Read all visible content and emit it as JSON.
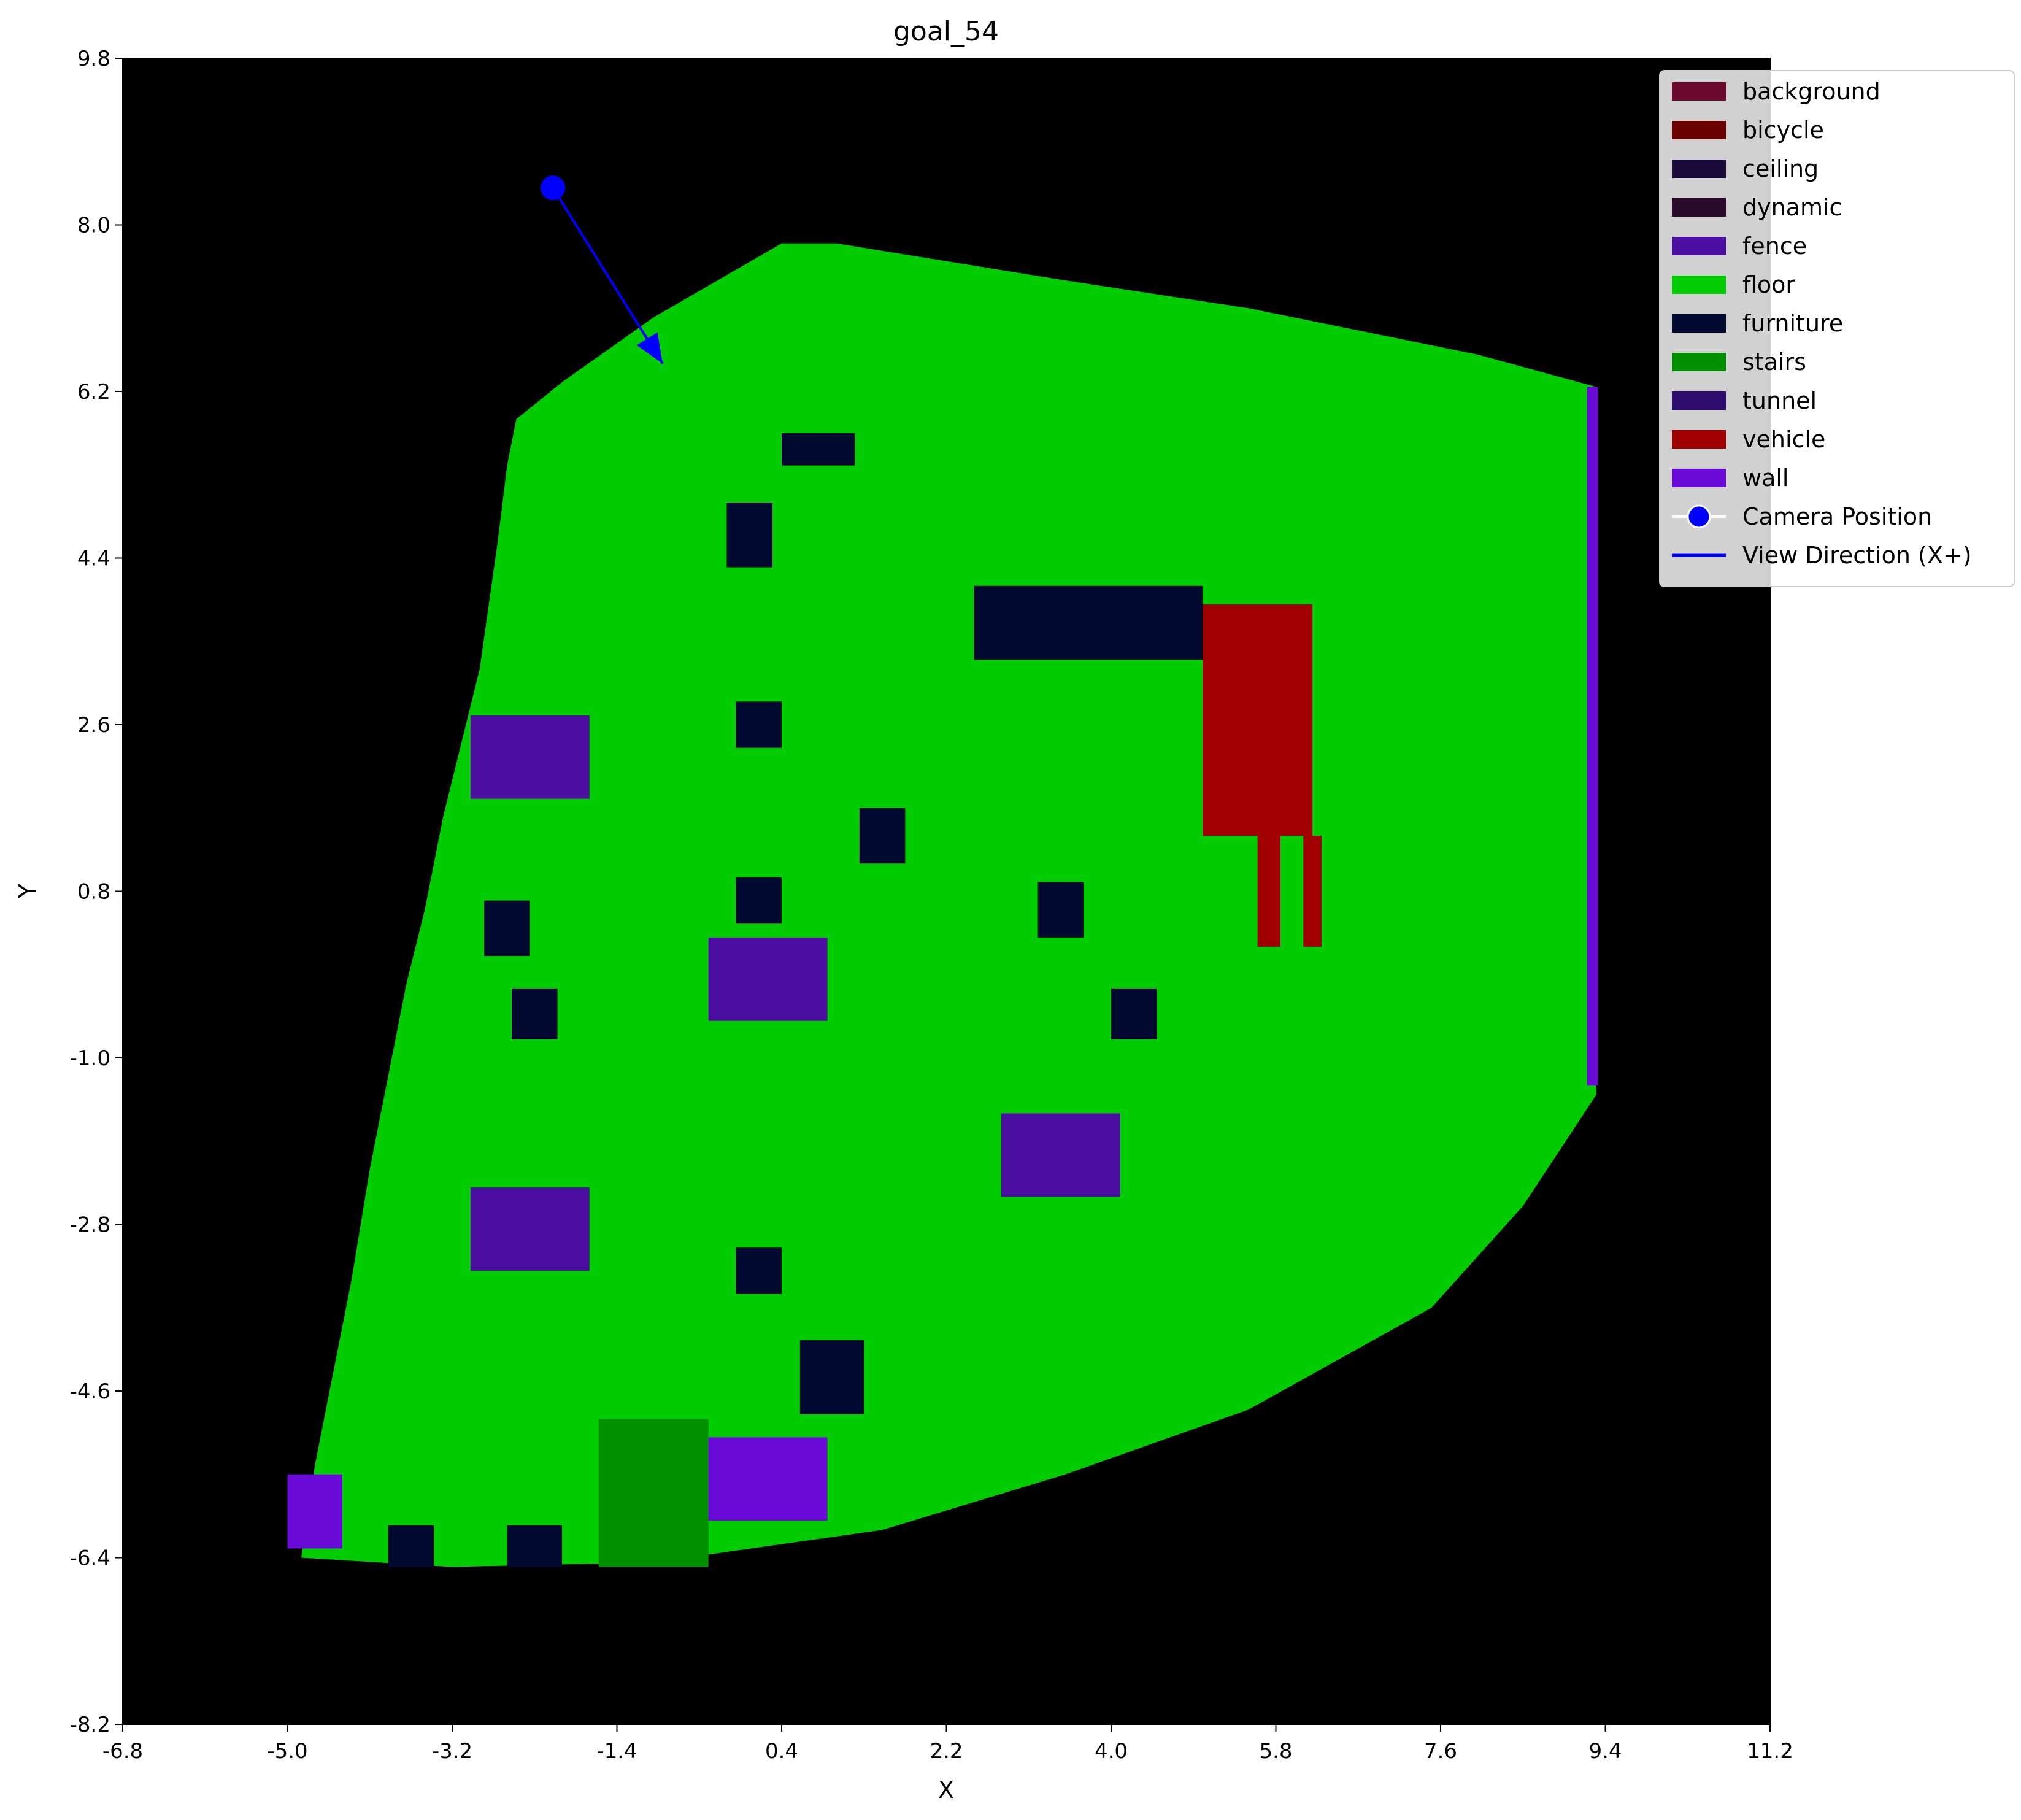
{
  "chart_data": {
    "type": "heatmap",
    "title": "goal_54",
    "xlabel": "X",
    "ylabel": "Y",
    "xlim": [
      -6.8,
      11.2
    ],
    "ylim": [
      -8.2,
      9.8
    ],
    "xticks": [
      "-6.8",
      "-5.0",
      "-3.2",
      "-1.4",
      "0.4",
      "2.2",
      "4.0",
      "5.8",
      "7.6",
      "9.4",
      "11.2"
    ],
    "yticks": [
      "9.8",
      "8.0",
      "6.2",
      "4.4",
      "2.6",
      "0.8",
      "-1.0",
      "-2.8",
      "-4.6",
      "-6.4",
      "-8.2"
    ],
    "background_color": "#000000",
    "legend_position": "top-right",
    "legend": [
      {
        "label": "background",
        "color": "#6b0a2e",
        "kind": "patch"
      },
      {
        "label": "bicycle",
        "color": "#6b0000",
        "kind": "patch"
      },
      {
        "label": "ceiling",
        "color": "#1a0a3a",
        "kind": "patch"
      },
      {
        "label": "dynamic",
        "color": "#2a0a2a",
        "kind": "patch"
      },
      {
        "label": "fence",
        "color": "#4b0ea0",
        "kind": "patch"
      },
      {
        "label": "floor",
        "color": "#00cc00",
        "kind": "patch"
      },
      {
        "label": "furniture",
        "color": "#000a30",
        "kind": "patch"
      },
      {
        "label": "stairs",
        "color": "#009000",
        "kind": "patch"
      },
      {
        "label": "tunnel",
        "color": "#2e0c6e",
        "kind": "patch"
      },
      {
        "label": "vehicle",
        "color": "#a00000",
        "kind": "patch"
      },
      {
        "label": "wall",
        "color": "#6a0ad8",
        "kind": "patch"
      },
      {
        "label": "Camera Position",
        "color": "#0000ff",
        "kind": "marker"
      },
      {
        "label": "View Direction (X+)",
        "color": "#0000ff",
        "kind": "line"
      }
    ],
    "camera": {
      "x": -2.1,
      "y": 8.4
    },
    "view_direction": {
      "x_end": -0.9,
      "y_end": 6.5
    },
    "floor_polygon": [
      [
        -2.5,
        5.9
      ],
      [
        -2.6,
        5.4
      ],
      [
        -2.7,
        4.6
      ],
      [
        -2.9,
        3.2
      ],
      [
        -3.1,
        2.4
      ],
      [
        -3.3,
        1.6
      ],
      [
        -3.5,
        0.6
      ],
      [
        -3.7,
        -0.2
      ],
      [
        -3.9,
        -1.2
      ],
      [
        -4.1,
        -2.2
      ],
      [
        -4.3,
        -3.4
      ],
      [
        -4.5,
        -4.4
      ],
      [
        -4.7,
        -5.4
      ],
      [
        -4.85,
        -6.4
      ],
      [
        -3.2,
        -6.5
      ],
      [
        -1.0,
        -6.45
      ],
      [
        1.5,
        -6.1
      ],
      [
        3.5,
        -5.5
      ],
      [
        5.5,
        -4.8
      ],
      [
        7.5,
        -3.7
      ],
      [
        8.5,
        -2.6
      ],
      [
        9.3,
        -1.4
      ],
      [
        9.3,
        6.25
      ],
      [
        8.0,
        6.6
      ],
      [
        5.5,
        7.1
      ],
      [
        3.5,
        7.4
      ],
      [
        1.0,
        7.8
      ],
      [
        0.4,
        7.8
      ],
      [
        -1.0,
        7.0
      ],
      [
        -2.0,
        6.3
      ]
    ],
    "regions": [
      {
        "cls": "wall",
        "x": 9.2,
        "y": -1.3,
        "w": 0.12,
        "h": 7.55
      },
      {
        "cls": "vehicle",
        "x": 5.0,
        "y": 1.4,
        "w": 1.2,
        "h": 2.5
      },
      {
        "cls": "vehicle",
        "x": 5.6,
        "y": 0.2,
        "w": 0.25,
        "h": 1.2
      },
      {
        "cls": "vehicle",
        "x": 6.1,
        "y": 0.2,
        "w": 0.2,
        "h": 1.2
      },
      {
        "cls": "furniture",
        "x": 2.5,
        "y": 3.3,
        "w": 2.5,
        "h": 0.8
      },
      {
        "cls": "furniture",
        "x": -0.2,
        "y": 4.3,
        "w": 0.5,
        "h": 0.7
      },
      {
        "cls": "furniture",
        "x": -0.1,
        "y": 2.35,
        "w": 0.5,
        "h": 0.5
      },
      {
        "cls": "furniture",
        "x": 1.25,
        "y": 1.1,
        "w": 0.5,
        "h": 0.6
      },
      {
        "cls": "furniture",
        "x": -0.1,
        "y": 0.45,
        "w": 0.5,
        "h": 0.5
      },
      {
        "cls": "furniture",
        "x": -2.85,
        "y": 0.1,
        "w": 0.5,
        "h": 0.6
      },
      {
        "cls": "furniture",
        "x": -2.55,
        "y": -0.8,
        "w": 0.5,
        "h": 0.55
      },
      {
        "cls": "furniture",
        "x": 3.2,
        "y": 0.3,
        "w": 0.5,
        "h": 0.6
      },
      {
        "cls": "furniture",
        "x": 4.0,
        "y": -0.8,
        "w": 0.5,
        "h": 0.55
      },
      {
        "cls": "furniture",
        "x": -0.1,
        "y": -3.55,
        "w": 0.5,
        "h": 0.5
      },
      {
        "cls": "furniture",
        "x": 0.6,
        "y": -4.85,
        "w": 0.7,
        "h": 0.8
      },
      {
        "cls": "furniture",
        "x": -3.9,
        "y": -6.5,
        "w": 0.5,
        "h": 0.45
      },
      {
        "cls": "furniture",
        "x": -2.6,
        "y": -6.5,
        "w": 0.6,
        "h": 0.45
      },
      {
        "cls": "furniture",
        "x": 0.4,
        "y": 5.4,
        "w": 0.8,
        "h": 0.35
      },
      {
        "cls": "fence",
        "x": -3.0,
        "y": 1.8,
        "w": 1.3,
        "h": 0.9
      },
      {
        "cls": "fence",
        "x": -0.4,
        "y": -0.6,
        "w": 1.3,
        "h": 0.9
      },
      {
        "cls": "fence",
        "x": 2.8,
        "y": -2.5,
        "w": 1.3,
        "h": 0.9
      },
      {
        "cls": "fence",
        "x": -3.0,
        "y": -3.3,
        "w": 1.3,
        "h": 0.9
      },
      {
        "cls": "wall",
        "x": -0.4,
        "y": -6.0,
        "w": 1.3,
        "h": 0.9
      },
      {
        "cls": "wall",
        "x": -5.0,
        "y": -6.3,
        "w": 0.6,
        "h": 0.8
      },
      {
        "cls": "stairs",
        "x": -1.6,
        "y": -6.5,
        "w": 1.2,
        "h": 1.6
      }
    ]
  }
}
